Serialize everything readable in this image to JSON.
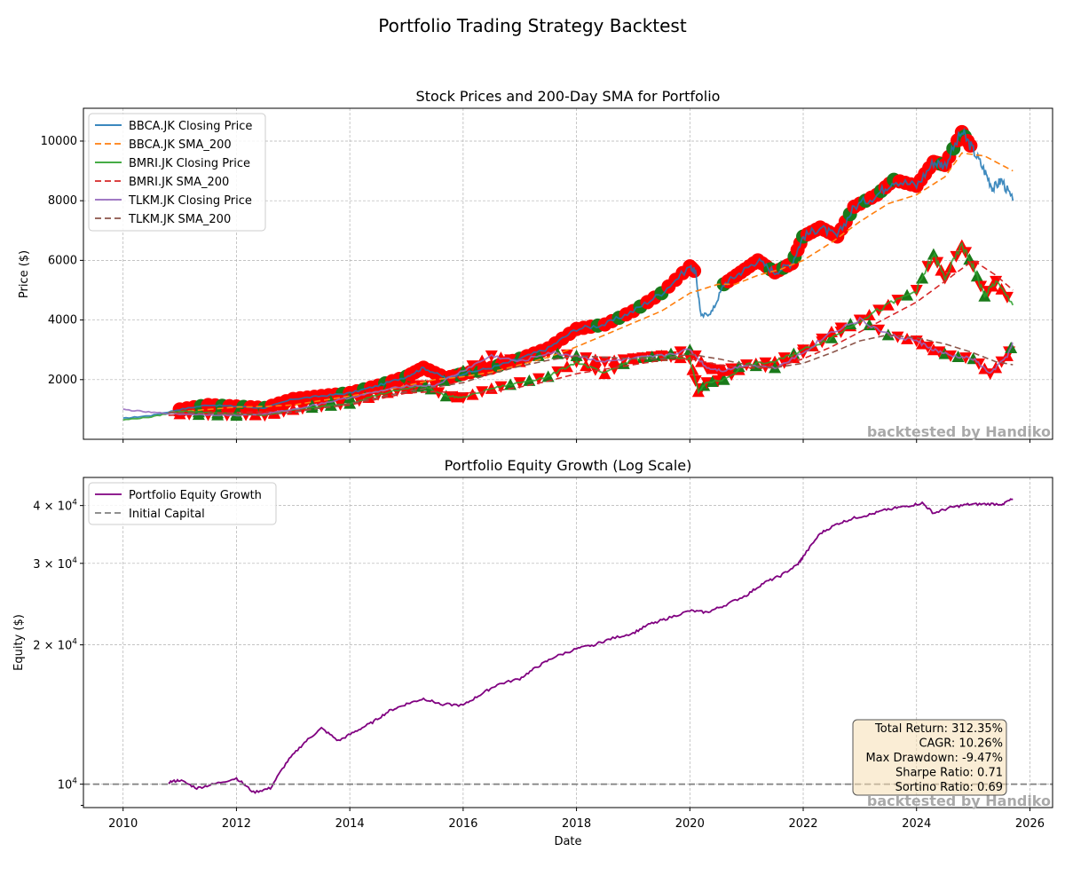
{
  "figure": {
    "suptitle": "Portfolio Trading Strategy Backtest",
    "watermark": "backtested by Handiko"
  },
  "chart_data": [
    {
      "type": "line",
      "title": "Stock Prices and 200-Day SMA for Portfolio",
      "xlabel": "",
      "ylabel": "Price ($)",
      "xlim": [
        2009.3,
        2026.4
      ],
      "ylim": [
        0,
        11100
      ],
      "yticks": [
        2000,
        4000,
        6000,
        8000,
        10000
      ],
      "xticks": [
        2010,
        2012,
        2014,
        2016,
        2018,
        2020,
        2022,
        2024,
        2026
      ],
      "grid": true,
      "legend": "top-left",
      "series": [
        {
          "name": "BBCA.JK Closing Price",
          "color": "#1f77b4",
          "style": "solid",
          "x": [
            2010.0,
            2010.5,
            2011.0,
            2011.5,
            2012.0,
            2012.5,
            2013.0,
            2013.5,
            2014.0,
            2014.5,
            2015.0,
            2015.3,
            2015.7,
            2016.0,
            2016.5,
            2017.0,
            2017.5,
            2018.0,
            2018.5,
            2019.0,
            2019.5,
            2020.0,
            2020.1,
            2020.2,
            2020.4,
            2020.6,
            2020.9,
            2021.2,
            2021.5,
            2021.8,
            2022.0,
            2022.3,
            2022.6,
            2022.9,
            2023.3,
            2023.6,
            2024.0,
            2024.3,
            2024.5,
            2024.8,
            2025.0,
            2025.2,
            2025.35,
            2025.5,
            2025.7
          ],
          "y": [
            700,
            800,
            1000,
            1150,
            1100,
            1050,
            1350,
            1450,
            1550,
            1800,
            2100,
            2400,
            2050,
            2200,
            2400,
            2700,
            3050,
            3700,
            3850,
            4300,
            4900,
            5800,
            5600,
            4100,
            4300,
            5200,
            5600,
            6000,
            5600,
            5900,
            6800,
            7100,
            6800,
            7800,
            8200,
            8700,
            8500,
            9300,
            9200,
            10300,
            9700,
            9000,
            8400,
            8700,
            8000
          ]
        },
        {
          "name": "BBCA.JK SMA_200",
          "color": "#ff7f0e",
          "style": "dashed",
          "x": [
            2010.8,
            2011.5,
            2012.0,
            2012.5,
            2013.0,
            2013.5,
            2014.0,
            2014.5,
            2015.0,
            2015.5,
            2016.0,
            2016.5,
            2017.0,
            2017.5,
            2018.0,
            2018.5,
            2019.0,
            2019.5,
            2020.0,
            2020.5,
            2020.8,
            2021.2,
            2021.6,
            2022.0,
            2022.5,
            2023.0,
            2023.5,
            2024.0,
            2024.5,
            2024.8,
            2025.2,
            2025.7
          ],
          "y": [
            900,
            1000,
            1080,
            1100,
            1150,
            1300,
            1450,
            1600,
            1800,
            2000,
            2100,
            2250,
            2500,
            2750,
            3100,
            3500,
            3900,
            4300,
            4900,
            5200,
            5200,
            5500,
            5700,
            6000,
            6600,
            7300,
            7900,
            8200,
            8800,
            9600,
            9500,
            9000
          ]
        },
        {
          "name": "BMRI.JK Closing Price",
          "color": "#2ca02c",
          "style": "solid",
          "x": [
            2010.0,
            2010.5,
            2011.0,
            2011.5,
            2012.0,
            2012.5,
            2013.0,
            2013.5,
            2014.0,
            2014.5,
            2015.0,
            2015.3,
            2015.7,
            2016.0,
            2016.5,
            2017.0,
            2017.5,
            2018.0,
            2018.5,
            2019.0,
            2019.5,
            2020.0,
            2020.15,
            2020.3,
            2020.6,
            2021.0,
            2021.5,
            2022.0,
            2022.5,
            2023.0,
            2023.5,
            2024.0,
            2024.3,
            2024.5,
            2024.8,
            2025.0,
            2025.2,
            2025.4,
            2025.7
          ],
          "y": [
            650,
            750,
            950,
            900,
            850,
            800,
            1000,
            1100,
            1200,
            1500,
            1700,
            1800,
            1450,
            1400,
            1700,
            1900,
            2100,
            2600,
            2200,
            2700,
            2800,
            2700,
            1600,
            1900,
            2000,
            2500,
            2600,
            3000,
            3400,
            4000,
            4500,
            5000,
            6200,
            5400,
            6500,
            5800,
            4800,
            5300,
            4500
          ]
        },
        {
          "name": "BMRI.JK SMA_200",
          "color": "#d62728",
          "style": "dashed",
          "x": [
            2010.8,
            2011.5,
            2012.0,
            2012.5,
            2013.0,
            2013.5,
            2014.0,
            2014.5,
            2015.0,
            2015.5,
            2016.0,
            2016.5,
            2017.0,
            2017.5,
            2018.0,
            2018.5,
            2019.0,
            2019.5,
            2020.0,
            2020.5,
            2021.0,
            2021.5,
            2022.0,
            2022.5,
            2023.0,
            2023.5,
            2024.0,
            2024.5,
            2025.0,
            2025.4,
            2025.7
          ],
          "y": [
            800,
            880,
            900,
            920,
            950,
            1050,
            1150,
            1350,
            1550,
            1600,
            1550,
            1600,
            1750,
            1950,
            2200,
            2350,
            2500,
            2650,
            2700,
            2500,
            2400,
            2400,
            2700,
            3100,
            3600,
            4100,
            4600,
            5300,
            6000,
            5500,
            5000
          ]
        },
        {
          "name": "TLKM.JK Closing Price",
          "color": "#9467bd",
          "style": "solid",
          "x": [
            2010.0,
            2010.5,
            2011.0,
            2011.5,
            2012.0,
            2012.5,
            2013.0,
            2013.5,
            2014.0,
            2014.5,
            2015.0,
            2015.5,
            2016.0,
            2016.5,
            2017.0,
            2017.5,
            2018.0,
            2018.5,
            2019.0,
            2019.5,
            2020.0,
            2020.3,
            2020.6,
            2021.0,
            2021.5,
            2022.0,
            2022.5,
            2023.0,
            2023.5,
            2024.0,
            2024.3,
            2024.6,
            2025.0,
            2025.3,
            2025.6,
            2025.7
          ],
          "y": [
            1000,
            900,
            850,
            820,
            800,
            850,
            1000,
            1200,
            1400,
            1600,
            1800,
            1800,
            2300,
            2800,
            2600,
            2900,
            2800,
            2600,
            2700,
            2800,
            3000,
            2400,
            2300,
            2500,
            2400,
            2900,
            3600,
            4000,
            3500,
            3300,
            3000,
            2800,
            2700,
            2200,
            2800,
            3200
          ]
        },
        {
          "name": "TLKM.JK SMA_200",
          "color": "#8c564b",
          "style": "dashed",
          "x": [
            2010.8,
            2011.5,
            2012.0,
            2012.5,
            2013.0,
            2013.5,
            2014.0,
            2014.5,
            2015.0,
            2015.5,
            2016.0,
            2016.5,
            2017.0,
            2017.5,
            2018.0,
            2018.5,
            2019.0,
            2019.5,
            2020.0,
            2020.5,
            2021.0,
            2021.5,
            2022.0,
            2022.5,
            2023.0,
            2023.5,
            2024.0,
            2024.5,
            2025.0,
            2025.4,
            2025.7
          ],
          "y": [
            900,
            870,
            830,
            820,
            900,
            1050,
            1200,
            1400,
            1600,
            1750,
            1900,
            2200,
            2450,
            2650,
            2800,
            2750,
            2700,
            2700,
            2850,
            2700,
            2500,
            2400,
            2550,
            2900,
            3300,
            3500,
            3400,
            3200,
            2900,
            2600,
            2500
          ]
        }
      ]
    },
    {
      "type": "line",
      "title": "Portfolio Equity Growth (Log Scale)",
      "xlabel": "Date",
      "ylabel": "Equity ($)",
      "yscale": "log",
      "xlim": [
        2009.3,
        2026.4
      ],
      "ylim": [
        8900,
        46000
      ],
      "xticks": [
        2010,
        2012,
        2014,
        2016,
        2018,
        2020,
        2022,
        2024,
        2026
      ],
      "yticks": [
        10000,
        20000,
        30000,
        40000
      ],
      "ytick_labels": [
        {
          "base": "10",
          "exp": "4"
        },
        {
          "base": "2 × 10",
          "exp": "4"
        },
        {
          "base": "3 × 10",
          "exp": "4"
        },
        {
          "base": "4 × 10",
          "exp": "4"
        }
      ],
      "grid": true,
      "legend": "top-left",
      "series": [
        {
          "name": "Portfolio Equity Growth",
          "color": "#800080",
          "style": "solid",
          "x": [
            2010.8,
            2011.0,
            2011.3,
            2011.6,
            2012.0,
            2012.3,
            2012.6,
            2012.9,
            2013.2,
            2013.5,
            2013.8,
            2014.1,
            2014.4,
            2014.7,
            2015.0,
            2015.3,
            2015.6,
            2016.0,
            2016.3,
            2016.6,
            2017.0,
            2017.3,
            2017.6,
            2018.0,
            2018.3,
            2018.6,
            2019.0,
            2019.3,
            2019.6,
            2020.0,
            2020.3,
            2020.6,
            2021.0,
            2021.3,
            2021.6,
            2021.9,
            2022.0,
            2022.3,
            2022.6,
            2022.9,
            2023.2,
            2023.5,
            2023.8,
            2024.1,
            2024.3,
            2024.6,
            2024.9,
            2025.2,
            2025.5,
            2025.7
          ],
          "y": [
            10100,
            10200,
            9800,
            10000,
            10300,
            9600,
            9800,
            11200,
            12300,
            13200,
            12400,
            13000,
            13600,
            14400,
            14900,
            15300,
            14900,
            14800,
            15600,
            16400,
            16900,
            17900,
            18800,
            19600,
            20000,
            20600,
            21200,
            22200,
            22800,
            23700,
            23500,
            24300,
            25600,
            27200,
            28200,
            29800,
            31000,
            34800,
            36500,
            37600,
            38300,
            39300,
            39800,
            40500,
            38500,
            39600,
            40200,
            40300,
            40300,
            41300
          ]
        },
        {
          "name": "Initial Capital",
          "color": "#808080",
          "style": "dashed",
          "x": [
            2009.3,
            2026.4
          ],
          "y": [
            10000,
            10000
          ]
        }
      ],
      "annotation": {
        "lines": [
          "Total Return: 312.35%",
          "CAGR: 10.26%",
          "Max Drawdown: -9.47%",
          "Sharpe Ratio: 0.71",
          "Sortino Ratio: 0.69"
        ],
        "box_color": "#f5deb3"
      }
    }
  ]
}
